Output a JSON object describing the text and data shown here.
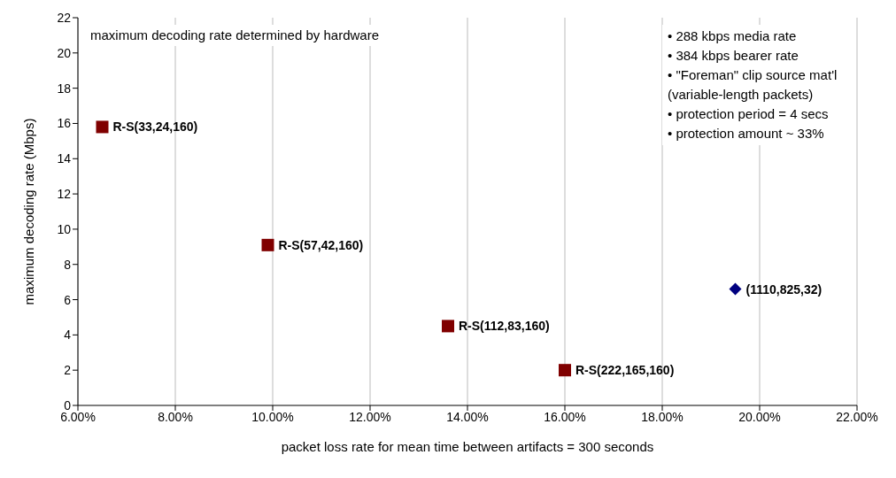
{
  "chart_data": {
    "type": "scatter",
    "xlabel": "packet loss rate for mean time between artifacts = 300 seconds",
    "ylabel": "maximum decoding rate (Mbps)",
    "series": [
      {
        "color": "#800000",
        "marker": "square",
        "x": [
          6.5,
          9.9,
          13.6,
          16.0
        ],
        "values": [
          15.8,
          9.1,
          4.5,
          2.0
        ]
      },
      {
        "color": "#000080",
        "marker": "diamond",
        "x": [
          19.5
        ],
        "values": [
          6.6
        ]
      }
    ],
    "xlim": [
      6,
      22
    ],
    "xticks": [
      {
        "value": 6,
        "label": "6.00%"
      },
      {
        "value": 8,
        "label": "8.00%"
      },
      {
        "value": 10,
        "label": "10.00%"
      },
      {
        "value": 12,
        "label": "12.00%"
      },
      {
        "value": 14,
        "label": "14.00%"
      },
      {
        "value": 16,
        "label": "16.00%"
      },
      {
        "value": 18,
        "label": "18.00%"
      },
      {
        "value": 20,
        "label": "20.00%"
      },
      {
        "value": 22,
        "label": "22.00%"
      }
    ],
    "ylim": [
      0,
      22
    ],
    "yticks": [
      0,
      2,
      4,
      6,
      8,
      10,
      12,
      14,
      16,
      18,
      20,
      22
    ],
    "grid": "x",
    "annotations": [
      {
        "text": "R-S(33,24,160)",
        "x": 6.5,
        "y": 15.8
      },
      {
        "text": "R-S(57,42,160)",
        "x": 9.9,
        "y": 9.1
      },
      {
        "text": "R-S(112,83,160)",
        "x": 13.6,
        "y": 4.5
      },
      {
        "text": "R-S(222,165,160)",
        "x": 16.0,
        "y": 2.0
      },
      {
        "text": "(1110,825,32)",
        "x": 19.5,
        "y": 6.6
      },
      "maximum decoding rate determined by hardware",
      "• 288 kbps media rate",
      "• 384 kbps bearer rate",
      "• \"Foreman\" clip source mat'l",
      "(variable-length packets)",
      "• protection period = 4 secs",
      "• protection amount ~ 33%"
    ]
  }
}
